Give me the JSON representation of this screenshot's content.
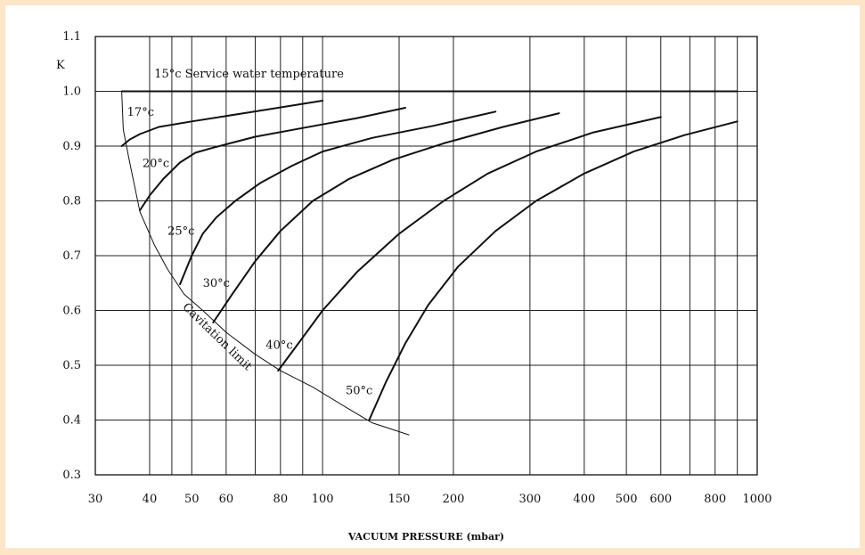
{
  "chart_data": {
    "type": "line",
    "title": "",
    "xlabel": "VACUUM PRESSURE (mbar)",
    "ylabel": "K",
    "x_scale": "log",
    "xlim": [
      30,
      1000
    ],
    "ylim": [
      0.3,
      1.1
    ],
    "grid": true,
    "x_ticks": [
      30,
      40,
      50,
      60,
      80,
      100,
      150,
      200,
      300,
      400,
      500,
      600,
      800,
      1000
    ],
    "x_tick_labels": [
      "30",
      "40",
      "50",
      "60",
      "80",
      "100",
      "150",
      "200",
      "300",
      "400",
      "500",
      "600",
      "800",
      "1000"
    ],
    "x_grid": [
      40,
      45,
      50,
      60,
      70,
      80,
      90,
      100,
      150,
      200,
      300,
      400,
      500,
      600,
      700,
      800,
      900
    ],
    "y_ticks": [
      0.3,
      0.4,
      0.5,
      0.6,
      0.7,
      0.8,
      0.9,
      1.0,
      1.1
    ],
    "y_tick_labels": [
      "0.3",
      "0.4",
      "0.5",
      "0.6",
      "0.7",
      "0.8",
      "0.9",
      "1.0",
      "1.1"
    ],
    "series": [
      {
        "name": "15°c Service water temperature",
        "points": [
          [
            34.5,
            1.0
          ],
          [
            900,
            1.0
          ]
        ]
      },
      {
        "name": "17°c",
        "points": [
          [
            34.5,
            0.9
          ],
          [
            36,
            0.912
          ],
          [
            38,
            0.922
          ],
          [
            42,
            0.935
          ],
          [
            50,
            0.945
          ],
          [
            60,
            0.955
          ],
          [
            75,
            0.967
          ],
          [
            100,
            0.983
          ]
        ]
      },
      {
        "name": "20°c",
        "points": [
          [
            38,
            0.783
          ],
          [
            40,
            0.81
          ],
          [
            43,
            0.84
          ],
          [
            47,
            0.87
          ],
          [
            51,
            0.888
          ],
          [
            56,
            0.897
          ],
          [
            70,
            0.917
          ],
          [
            90,
            0.933
          ],
          [
            120,
            0.951
          ],
          [
            155,
            0.97
          ]
        ]
      },
      {
        "name": "25°c",
        "points": [
          [
            47,
            0.648
          ],
          [
            50,
            0.7
          ],
          [
            53,
            0.74
          ],
          [
            57,
            0.77
          ],
          [
            63,
            0.8
          ],
          [
            72,
            0.833
          ],
          [
            85,
            0.864
          ],
          [
            100,
            0.89
          ],
          [
            130,
            0.915
          ],
          [
            180,
            0.937
          ],
          [
            250,
            0.963
          ]
        ]
      },
      {
        "name": "30°c",
        "points": [
          [
            56,
            0.578
          ],
          [
            62,
            0.63
          ],
          [
            70,
            0.69
          ],
          [
            80,
            0.745
          ],
          [
            95,
            0.8
          ],
          [
            115,
            0.84
          ],
          [
            145,
            0.875
          ],
          [
            190,
            0.905
          ],
          [
            260,
            0.935
          ],
          [
            350,
            0.96
          ]
        ]
      },
      {
        "name": "40°c",
        "points": [
          [
            79,
            0.49
          ],
          [
            88,
            0.54
          ],
          [
            100,
            0.6
          ],
          [
            120,
            0.67
          ],
          [
            150,
            0.74
          ],
          [
            190,
            0.8
          ],
          [
            240,
            0.85
          ],
          [
            310,
            0.89
          ],
          [
            420,
            0.925
          ],
          [
            600,
            0.953
          ]
        ]
      },
      {
        "name": "50°c",
        "points": [
          [
            128,
            0.4
          ],
          [
            140,
            0.47
          ],
          [
            155,
            0.54
          ],
          [
            175,
            0.61
          ],
          [
            205,
            0.68
          ],
          [
            250,
            0.745
          ],
          [
            310,
            0.8
          ],
          [
            400,
            0.85
          ],
          [
            520,
            0.89
          ],
          [
            680,
            0.92
          ],
          [
            900,
            0.945
          ]
        ]
      },
      {
        "name": "Cavitation limit",
        "points": [
          [
            34.5,
            1.0
          ],
          [
            34.8,
            0.93
          ],
          [
            36,
            0.87
          ],
          [
            38,
            0.78
          ],
          [
            41,
            0.72
          ],
          [
            44,
            0.675
          ],
          [
            48,
            0.63
          ],
          [
            53,
            0.6
          ],
          [
            60,
            0.56
          ],
          [
            70,
            0.52
          ],
          [
            80,
            0.49
          ],
          [
            95,
            0.46
          ],
          [
            115,
            0.42
          ],
          [
            130,
            0.395
          ],
          [
            158,
            0.373
          ]
        ]
      }
    ],
    "labels": [
      {
        "text": "15°c  Service  water  temperature",
        "x": 41,
        "y": 1.025
      },
      {
        "text": "17°c",
        "x": 35.5,
        "y": 0.955
      },
      {
        "text": "20°c",
        "x": 38.5,
        "y": 0.862
      },
      {
        "text": "25°c",
        "x": 44,
        "y": 0.738
      },
      {
        "text": "30°c",
        "x": 53,
        "y": 0.643
      },
      {
        "text": "40°c",
        "x": 74,
        "y": 0.53
      },
      {
        "text": "50°c",
        "x": 113,
        "y": 0.447
      },
      {
        "text": "Cavitation  limit",
        "x": 47.5,
        "y": 0.605,
        "rotate": 44
      }
    ]
  }
}
